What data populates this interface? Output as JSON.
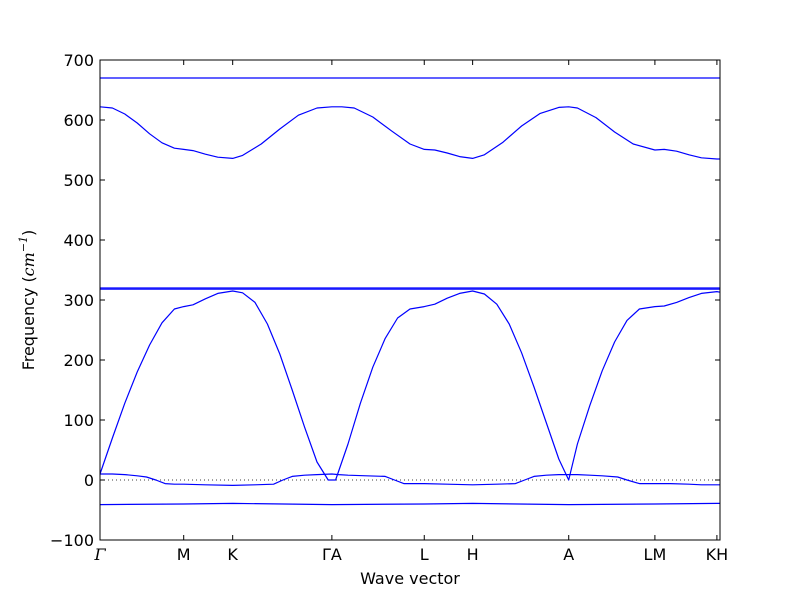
{
  "chart_data": {
    "type": "line",
    "title": "",
    "xlabel": "Wave vector",
    "ylabel": {
      "prefix": "Frequency (",
      "unit": "cm",
      "exponent": "−1",
      "suffix": ")"
    },
    "x_range": [
      0,
      100
    ],
    "ylim": [
      -100,
      700
    ],
    "yticks": [
      -100,
      0,
      100,
      200,
      300,
      400,
      500,
      600,
      700
    ],
    "grid": false,
    "legend": "none",
    "line_color": "#0000ff",
    "zero_line": {
      "y": 0,
      "style": "dotted",
      "color": "#000000"
    },
    "x_ticks": [
      {
        "label": "Γ",
        "x": 0,
        "math": true
      },
      {
        "label": "M",
        "x": 13.5,
        "math": false
      },
      {
        "label": "K",
        "x": 21.4,
        "math": false
      },
      {
        "label": "ΓA",
        "x": 37.4,
        "math": false
      },
      {
        "label": "L",
        "x": 52.3,
        "math": false
      },
      {
        "label": "H",
        "x": 60.1,
        "math": false
      },
      {
        "label": "A",
        "x": 75.6,
        "math": false
      },
      {
        "label": "LM",
        "x": 89.5,
        "math": false
      },
      {
        "label": "KH",
        "x": 99.5,
        "math": false
      }
    ],
    "series": [
      {
        "x": [
          0,
          100
        ],
        "y": [
          670,
          670
        ]
      },
      {
        "x": [
          0,
          2,
          4,
          6,
          8,
          10,
          12,
          13.5,
          15,
          17,
          19,
          21.4,
          23,
          26,
          29,
          32,
          35,
          37.4,
          39,
          41,
          44,
          47,
          50,
          52.3,
          54,
          56,
          58,
          60.1,
          62,
          65,
          68,
          71,
          74,
          75.6,
          77,
          80,
          83,
          86,
          89.5,
          91,
          93,
          95,
          97,
          99.5,
          100
        ],
        "y": [
          622,
          620,
          610,
          595,
          577,
          562,
          553,
          551,
          549,
          543,
          538,
          536,
          541,
          560,
          585,
          608,
          620,
          622,
          622,
          620,
          605,
          582,
          560,
          551,
          550,
          545,
          539,
          536,
          542,
          563,
          590,
          611,
          621,
          622,
          620,
          604,
          580,
          560,
          550,
          551,
          548,
          542,
          537,
          535,
          535
        ]
      },
      {
        "x": [
          0,
          100
        ],
        "y": [
          320,
          320
        ]
      },
      {
        "x": [
          0,
          100
        ],
        "y": [
          318,
          318
        ]
      },
      {
        "x": [
          0,
          2,
          4,
          6,
          8,
          10,
          12,
          13.5,
          15,
          17,
          19,
          21.4,
          23,
          25,
          27,
          29,
          31,
          33,
          35,
          36.8,
          37.4,
          38,
          40,
          42,
          44,
          46,
          48,
          50,
          52.3,
          54,
          56,
          58,
          60.1,
          62,
          64,
          66,
          68,
          70,
          72,
          74,
          75.6,
          77,
          79,
          81,
          83,
          85,
          87,
          89.5,
          91,
          93,
          95,
          97,
          99.5,
          100
        ],
        "y": [
          10,
          70,
          128,
          180,
          225,
          262,
          285,
          289,
          292,
          302,
          311,
          315,
          312,
          296,
          260,
          210,
          150,
          88,
          30,
          0,
          0,
          0,
          60,
          128,
          188,
          236,
          270,
          285,
          289,
          293,
          303,
          311,
          315,
          310,
          293,
          260,
          212,
          155,
          95,
          35,
          0,
          60,
          124,
          182,
          230,
          266,
          285,
          289,
          290,
          296,
          304,
          311,
          314,
          313
        ]
      },
      {
        "x": [
          0,
          2,
          4,
          6,
          7.5,
          9,
          10.5,
          12,
          13.5,
          17,
          21.4,
          25,
          28,
          29.5,
          31,
          33,
          35,
          37.4,
          38.5,
          40,
          43,
          46,
          47.5,
          49,
          52.3,
          56,
          60.1,
          64,
          67,
          68.5,
          70,
          72,
          74,
          75.6,
          77,
          79,
          81,
          83.5,
          85,
          87,
          89.5,
          92,
          95,
          97,
          99.5,
          100
        ],
        "y": [
          10,
          10,
          9,
          7,
          5,
          0,
          -6,
          -7,
          -7,
          -8,
          -9,
          -8,
          -7,
          0,
          6,
          8,
          9,
          10,
          9,
          8,
          7,
          6,
          0,
          -6,
          -6,
          -7,
          -8,
          -7,
          -6,
          0,
          6,
          8,
          9,
          9,
          9,
          8,
          7,
          5,
          0,
          -6,
          -6,
          -6,
          -7,
          -8,
          -8,
          -8
        ]
      },
      {
        "x": [
          0,
          13.5,
          21.4,
          37.4,
          52.3,
          60.1,
          75.6,
          89.5,
          99.5,
          100
        ],
        "y": [
          -41,
          -40,
          -39,
          -41,
          -40,
          -39,
          -41,
          -40,
          -39,
          -39
        ]
      }
    ]
  }
}
